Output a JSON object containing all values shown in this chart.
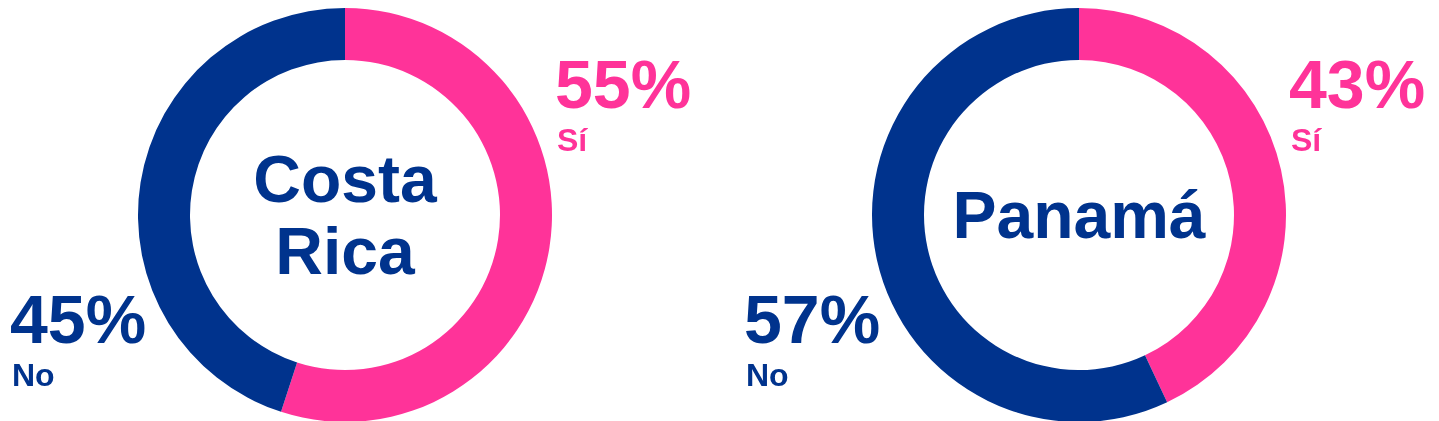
{
  "chart_data": [
    {
      "type": "donut",
      "title": "Costa Rica",
      "categories": [
        "Sí",
        "No"
      ],
      "values": [
        55,
        45
      ],
      "colors": [
        "#ff3399",
        "#00338d"
      ],
      "value_labels": [
        "55%",
        "45%"
      ]
    },
    {
      "type": "donut",
      "title": "Panamá",
      "categories": [
        "Sí",
        "No"
      ],
      "values": [
        43,
        57
      ],
      "colors": [
        "#ff3399",
        "#00338d"
      ],
      "value_labels": [
        "43%",
        "57%"
      ]
    }
  ]
}
